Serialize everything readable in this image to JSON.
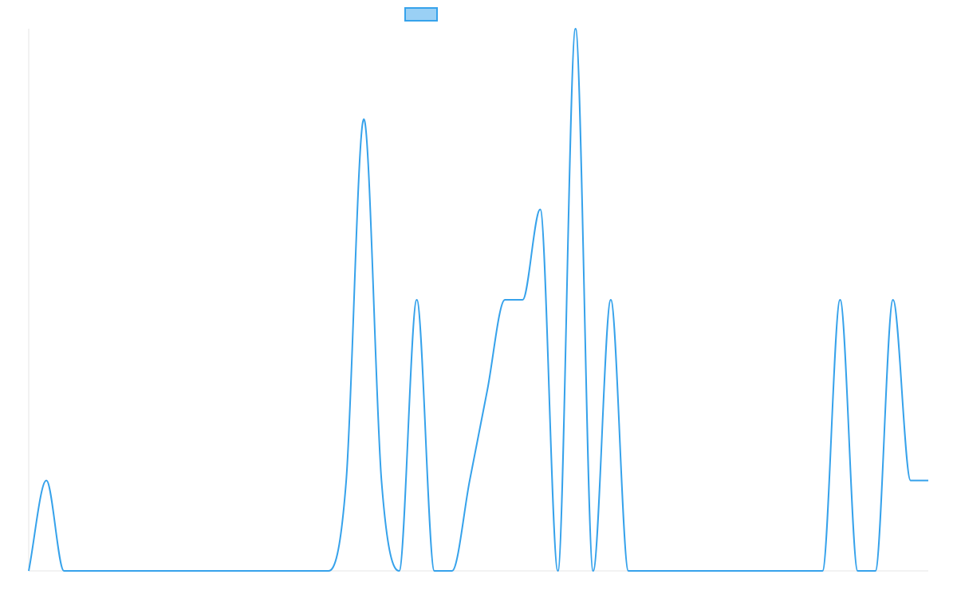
{
  "chart_data": {
    "type": "line",
    "title": "",
    "xlabel": "",
    "ylabel": "",
    "grid": false,
    "legend_position": "top-center",
    "colors": {
      "line": "#36a2eb",
      "legend_fill": "#9ad0f5",
      "legend_border": "#36a2eb",
      "axis": "#e5e5e5"
    },
    "ylim": [
      0,
      6
    ],
    "series": [
      {
        "values": [
          0,
          1,
          0,
          0,
          0,
          0,
          0,
          0,
          0,
          0,
          0,
          0,
          0,
          0,
          0,
          0,
          0,
          0,
          1,
          5,
          1,
          0,
          3,
          0,
          0,
          1,
          2,
          3,
          3,
          4,
          0,
          6,
          0,
          3,
          0,
          0,
          0,
          0,
          0,
          0,
          0,
          0,
          0,
          0,
          0,
          0,
          3,
          0,
          0,
          3,
          1,
          1
        ]
      }
    ]
  }
}
